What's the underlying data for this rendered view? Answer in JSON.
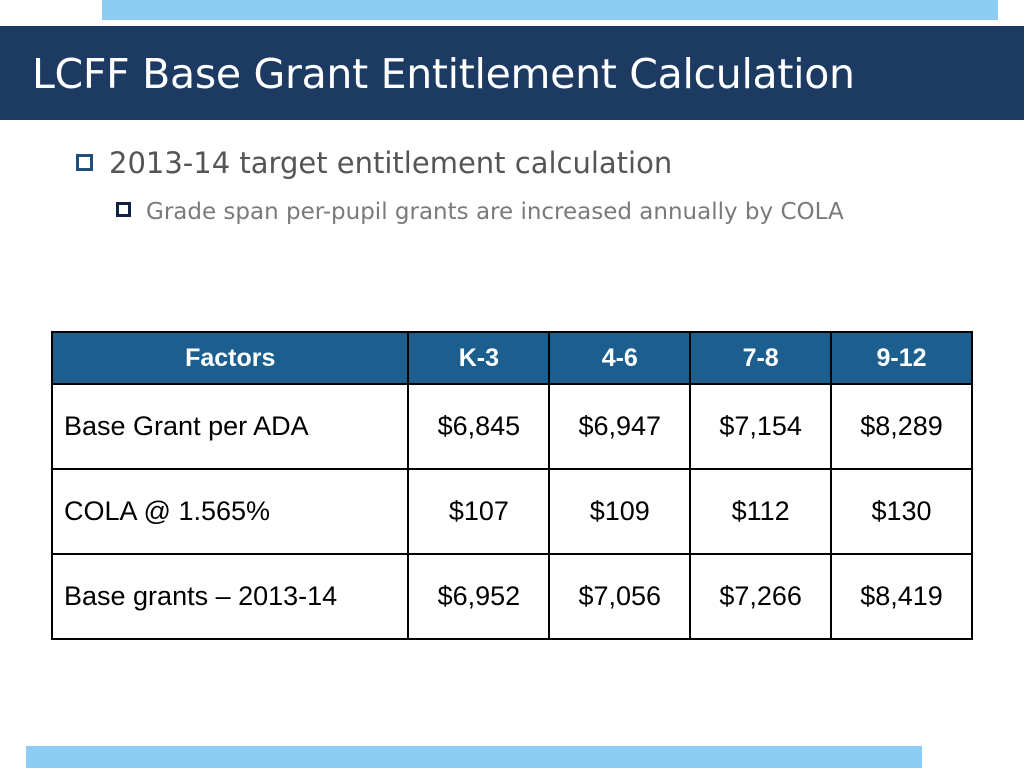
{
  "slide": {
    "title": "LCFF Base Grant Entitlement Calculation",
    "bullet1": "2013-14 target entitlement calculation",
    "bullet2": "Grade span per-pupil grants are increased annually by COLA"
  },
  "table": {
    "headers": [
      "Factors",
      "K-3",
      "4-6",
      "7-8",
      "9-12"
    ],
    "rows": [
      [
        "Base Grant per ADA",
        "$6,845",
        "$6,947",
        "$7,154",
        "$8,289"
      ],
      [
        "COLA @ 1.565%",
        "$107",
        "$109",
        "$112",
        "$130"
      ],
      [
        "Base grants – 2013-14",
        "$6,952",
        "$7,056",
        "$7,266",
        "$8,419"
      ]
    ]
  },
  "colors": {
    "title_bar": "#1d3a63",
    "accent_strip": "#8ecdf3",
    "table_header": "#1c5f8f"
  }
}
